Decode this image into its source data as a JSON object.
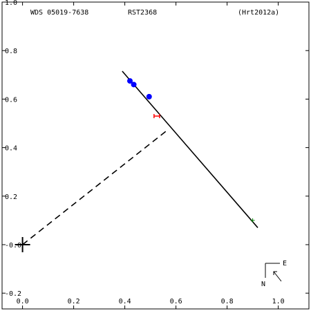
{
  "header": {
    "left": "WDS 05019-7638",
    "center": "RST2368",
    "right": "(Hrt2012a)"
  },
  "compass": {
    "east_label": "E",
    "north_label": "N"
  },
  "chart_data": {
    "type": "scatter",
    "title": "",
    "xlabel": "",
    "ylabel": "",
    "xlim": [
      -0.08,
      1.12
    ],
    "ylim": [
      -0.265,
      1.0
    ],
    "x_ticks": [
      "0.0",
      "0.2",
      "0.4",
      "0.6",
      "0.8",
      "1.0"
    ],
    "y_ticks": [
      "-0.2",
      "-0.0",
      "0.2",
      "0.4",
      "0.6",
      "0.8",
      "1.0"
    ],
    "grid": false,
    "primary": {
      "x": 0.0,
      "y": 0.0
    },
    "orbit_line": {
      "x1": 0.39,
      "y1": 0.715,
      "x2": 0.92,
      "y2": 0.07
    },
    "dashed_line": {
      "x1": 0.0,
      "y1": 0.0,
      "x2": 0.57,
      "y2": 0.475
    },
    "series": [
      {
        "values": [
          {
            "x": 0.42,
            "y": 0.675
          },
          {
            "x": 0.435,
            "y": 0.66
          },
          {
            "x": 0.495,
            "y": 0.61
          }
        ],
        "color": "#0000ff"
      },
      {
        "values": [
          {
            "x": 0.525,
            "y": 0.53
          }
        ],
        "color": "#ff0000"
      },
      {
        "values": [
          {
            "x": 0.9,
            "y": 0.1
          }
        ],
        "color": "#008000"
      }
    ]
  }
}
